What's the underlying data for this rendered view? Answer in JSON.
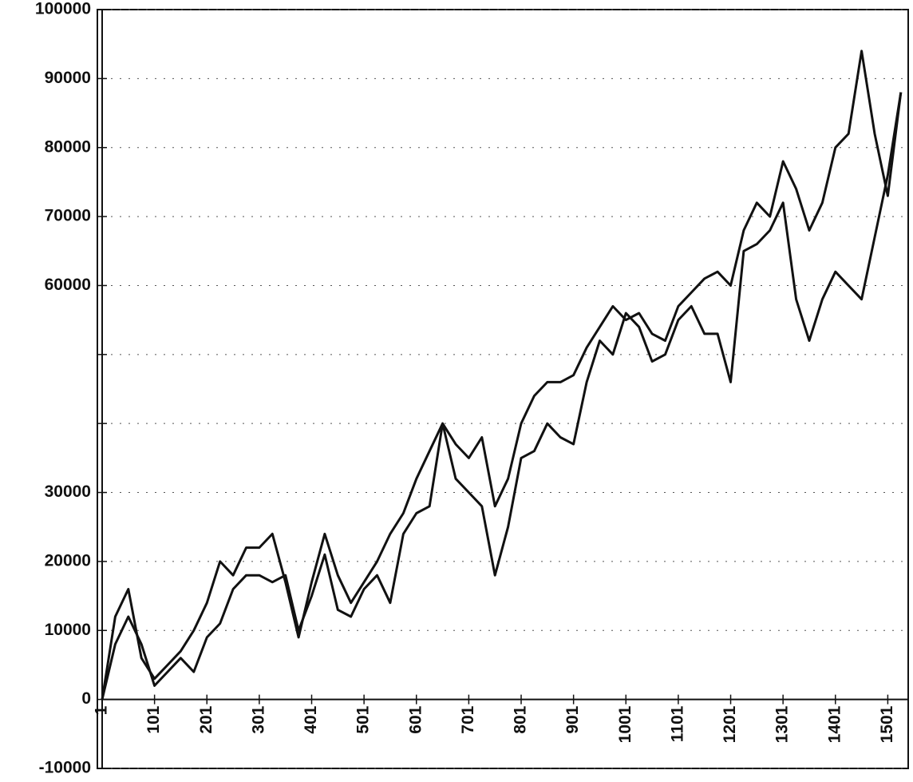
{
  "chart_data": {
    "type": "line",
    "x": [
      1,
      26,
      51,
      76,
      101,
      126,
      151,
      176,
      201,
      226,
      251,
      276,
      301,
      326,
      351,
      376,
      401,
      426,
      451,
      476,
      501,
      526,
      551,
      576,
      601,
      626,
      651,
      676,
      701,
      726,
      751,
      776,
      801,
      826,
      851,
      876,
      901,
      926,
      951,
      976,
      1001,
      1026,
      1051,
      1076,
      1101,
      1126,
      1151,
      1176,
      1201,
      1226,
      1251,
      1276,
      1301,
      1326,
      1351,
      1376,
      1401,
      1426,
      1451,
      1476,
      1501,
      1526
    ],
    "series": [
      {
        "color": "#111111",
        "values": [
          0,
          12000,
          16000,
          6000,
          3000,
          5000,
          7000,
          10000,
          14000,
          20000,
          18000,
          22000,
          22000,
          24000,
          17000,
          9000,
          17000,
          24000,
          18000,
          14000,
          17000,
          20000,
          24000,
          27000,
          32000,
          36000,
          40000,
          37000,
          35000,
          38000,
          28000,
          32000,
          40000,
          44000,
          46000,
          46000,
          47000,
          51000,
          54000,
          57000,
          55000,
          56000,
          53000,
          52000,
          57000,
          59000,
          61000,
          62000,
          60000,
          68000,
          72000,
          70000,
          78000,
          74000,
          68000,
          72000,
          80000,
          82000,
          94000,
          82000,
          73000,
          88000
        ]
      },
      {
        "color": "#111111",
        "values": [
          0,
          8000,
          12000,
          8000,
          2000,
          4000,
          6000,
          4000,
          9000,
          11000,
          16000,
          18000,
          18000,
          17000,
          18000,
          10000,
          15000,
          21000,
          13000,
          12000,
          16000,
          18000,
          14000,
          24000,
          27000,
          28000,
          40000,
          32000,
          30000,
          28000,
          18000,
          25000,
          35000,
          36000,
          40000,
          38000,
          37000,
          46000,
          52000,
          50000,
          56000,
          54000,
          49000,
          50000,
          55000,
          57000,
          53000,
          53000,
          46000,
          65000,
          66000,
          68000,
          72000,
          58000,
          52000,
          58000,
          62000,
          60000,
          58000,
          67000,
          76000,
          88000
        ]
      }
    ],
    "xlim": [
      1,
      1540
    ],
    "xticks": [
      1,
      101,
      201,
      301,
      401,
      501,
      601,
      701,
      801,
      901,
      1001,
      1101,
      1201,
      1301,
      1401,
      1501
    ],
    "ylim": [
      -10000,
      100000
    ],
    "yticks": [
      -10000,
      0,
      10000,
      20000,
      30000,
      {
        "value": 40000,
        "label": null
      },
      {
        "value": 50000,
        "label": null
      },
      60000,
      70000,
      80000,
      90000,
      100000
    ],
    "grid": true
  }
}
